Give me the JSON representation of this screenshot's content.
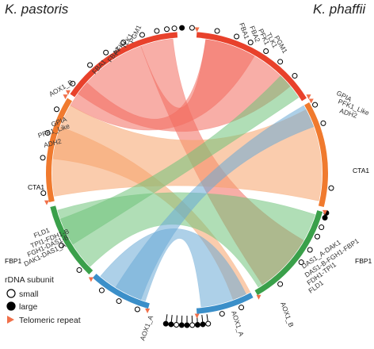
{
  "species": {
    "left": "K. pastoris",
    "right": "K. phaffii"
  },
  "legend": {
    "title": "rDNA subunit",
    "small": "small",
    "large": "large",
    "telomeric": "Telomeric repeat"
  },
  "colors": {
    "red": "#e8412b",
    "orange": "#f07a2e",
    "green": "#3aa04a",
    "blue": "#3b8fc9",
    "telomere": "#f0704a",
    "ribbon_red": "#f26b5e",
    "ribbon_orange": "#f5a36a",
    "ribbon_green": "#6fc27a",
    "ribbon_blue": "#6aaad6"
  },
  "genes": {
    "pgm1_left": "PGM1",
    "tlk1_left": "TLK1",
    "pfk1_left_top": "PFK1",
    "fba2_left": "FBA2",
    "fba1_left": "FBA1",
    "aox1b_left": "AOX1_B",
    "gpia_left": "GPIA",
    "pfk1like_left": "PFK1_Like",
    "adh2_left": "ADH2",
    "cta1_left": "CTA1",
    "fbp1_left": "FBP1",
    "fld1_left": "FLD1",
    "tpi1fdh1_left": "TPI1-FDH1-B",
    "fgh1das1_left": "FGH1-DAS1-B",
    "dak1das1_left": "DAK1-DAS1_A",
    "aox1a_left": "AOX1_A",
    "fba1_right": "FBA1",
    "fba2_right": "FBA2",
    "pfk1_right": "PFK1",
    "tlk1_right": "TLK1",
    "pgm1_right": "PGM1",
    "gpia_right": "GPIA",
    "pfk1like_right": "PFK1_Like",
    "adh2_right": "ADH2",
    "cta1_right": "CTA1",
    "das1dak1_right": "DAS1_A-DAK1",
    "das1fgh1_right": "DAS1-B-FGH1-FBP1",
    "fdh1tpi1_right": "FDH1-TPI1",
    "fld1_right": "FLD1",
    "aox1b_right": "AOX1_B",
    "aox1a_right": "AOX1_A",
    "fbp1_right": "FBP1"
  }
}
